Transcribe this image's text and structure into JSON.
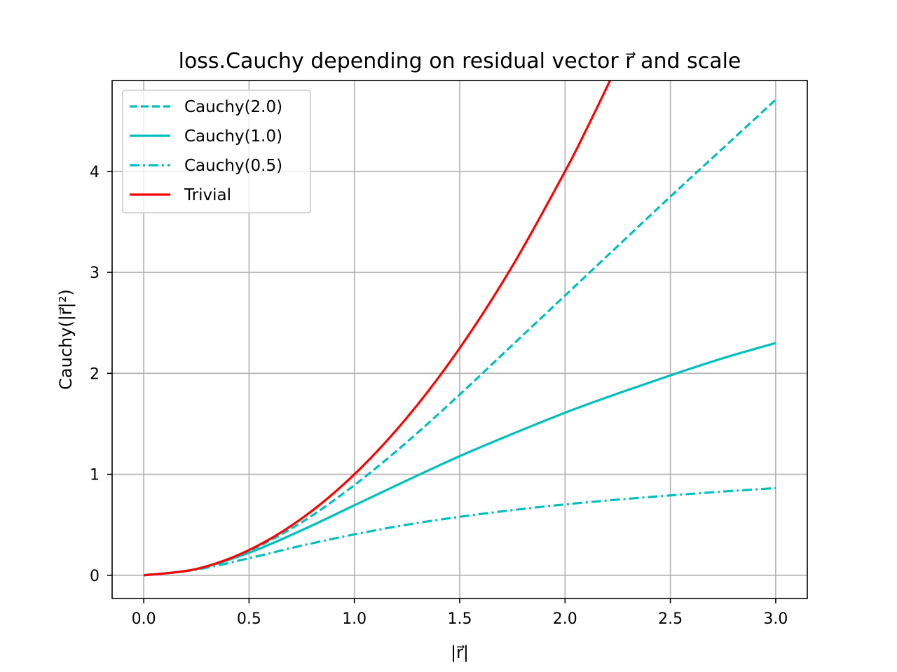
{
  "chart_data": {
    "type": "line",
    "title": "loss.Cauchy depending on residual vector r⃗ and scale",
    "xlabel": "|r⃗|",
    "ylabel": "Cauchy(|r⃗|²)",
    "xlim": [
      -0.15,
      3.15
    ],
    "ylim": [
      -0.23,
      4.9
    ],
    "xticks": [
      0.0,
      0.5,
      1.0,
      1.5,
      2.0,
      2.5,
      3.0
    ],
    "xtick_labels": [
      "0.0",
      "0.5",
      "1.0",
      "1.5",
      "2.0",
      "2.5",
      "3.0"
    ],
    "yticks": [
      0,
      1,
      2,
      3,
      4
    ],
    "ytick_labels": [
      "0",
      "1",
      "2",
      "3",
      "4"
    ],
    "grid": true,
    "legend_position": "upper-left",
    "series": [
      {
        "name": "Cauchy(2.0)",
        "color": "#00bfbf",
        "dash": "dashed",
        "x": [
          0.0,
          0.25,
          0.5,
          0.75,
          1.0,
          1.25,
          1.5,
          1.75,
          2.0,
          2.25,
          2.5,
          2.75,
          3.0
        ],
        "y": [
          0.0,
          0.062,
          0.242,
          0.525,
          0.893,
          1.32,
          1.79,
          2.28,
          2.77,
          3.26,
          3.75,
          4.23,
          4.71
        ]
      },
      {
        "name": "Cauchy(1.0)",
        "color": "#00bfbf",
        "dash": "solid",
        "x": [
          0.0,
          0.25,
          0.5,
          0.75,
          1.0,
          1.25,
          1.5,
          1.75,
          2.0,
          2.25,
          2.5,
          2.75,
          3.0
        ],
        "y": [
          0.0,
          0.061,
          0.223,
          0.446,
          0.693,
          0.94,
          1.18,
          1.4,
          1.61,
          1.8,
          1.98,
          2.15,
          2.3
        ]
      },
      {
        "name": "Cauchy(0.5)",
        "color": "#00bfbf",
        "dash": "dashdot",
        "x": [
          0.0,
          0.25,
          0.5,
          0.75,
          1.0,
          1.25,
          1.5,
          1.75,
          2.0,
          2.25,
          2.5,
          2.75,
          3.0
        ],
        "y": [
          0.0,
          0.056,
          0.169,
          0.294,
          0.405,
          0.501,
          0.579,
          0.645,
          0.702,
          0.749,
          0.791,
          0.829,
          0.863
        ]
      },
      {
        "name": "Trivial",
        "color": "#ff0000",
        "dash": "solid",
        "x": [
          0.0,
          0.25,
          0.5,
          0.75,
          1.0,
          1.25,
          1.5,
          1.75,
          2.0,
          2.1,
          2.2,
          2.25
        ],
        "y": [
          0.0,
          0.0625,
          0.25,
          0.5625,
          1.0,
          1.5625,
          2.25,
          3.0625,
          4.0,
          4.41,
          4.84,
          5.0625
        ]
      }
    ]
  }
}
